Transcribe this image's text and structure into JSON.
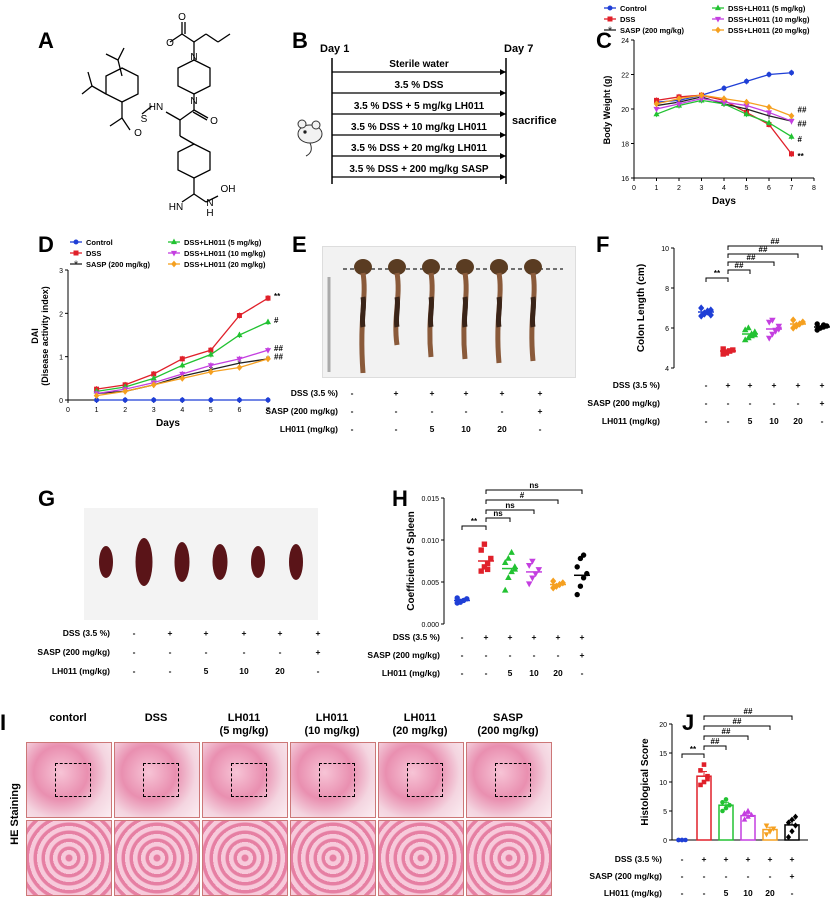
{
  "panels": {
    "A": "A",
    "B": "B",
    "C": "C",
    "D": "D",
    "E": "E",
    "F": "F",
    "G": "G",
    "H": "H",
    "I": "I",
    "J": "J"
  },
  "chem": {
    "atoms": [
      "O",
      "O",
      "N",
      "N",
      "O",
      "S",
      "O",
      "HN",
      "N",
      "OH",
      "HN",
      "H"
    ]
  },
  "schematic": {
    "day1": "Day 1",
    "day7": "Day 7",
    "sacrifice": "sacrifice",
    "groups": [
      "Sterile water",
      "3.5 % DSS",
      "3.5 % DSS + 5 mg/kg LH011",
      "3.5 % DSS + 10 mg/kg LH011",
      "3.5 % DSS + 20 mg/kg LH011",
      "3.5 % DSS + 200 mg/kg SASP"
    ]
  },
  "colors": {
    "Control": "#1f3fd6",
    "DSS": "#e0202a",
    "SASP": "#222222",
    "LH5": "#22c232",
    "LH10": "#c43fe0",
    "LH20": "#f5a020"
  },
  "treat": {
    "rows": [
      "DSS (3.5 %)",
      "SASP (200 mg/kg)",
      "LH011 (mg/kg)"
    ],
    "dss": [
      "-",
      "+",
      "+",
      "+",
      "+",
      "+"
    ],
    "sasp": [
      "-",
      "-",
      "-",
      "-",
      "-",
      "+"
    ],
    "lh": [
      "-",
      "-",
      "5",
      "10",
      "20",
      "-"
    ]
  },
  "treatFH": {
    "dss": [
      "-",
      "+",
      "+",
      "+",
      "+",
      "+"
    ],
    "sasp": [
      "-",
      "-",
      "-",
      "-",
      "-",
      "+"
    ],
    "lh": [
      "-",
      "-",
      "5",
      "10",
      "20",
      "-"
    ]
  },
  "chart_data": [
    {
      "panel": "C",
      "type": "line",
      "ylabel": "Body  Weight  (g)",
      "xlabel": "Days",
      "xlim": [
        0,
        8
      ],
      "ylim": [
        16,
        24
      ],
      "xticks": [
        "0",
        "1",
        "2",
        "3",
        "4",
        "5",
        "6",
        "7",
        "8"
      ],
      "yticks": [
        "16",
        "18",
        "20",
        "22",
        "24"
      ],
      "legend": [
        "Control",
        "DSS",
        "SASP (200 mg/kg)",
        "DSS+LH011 (5 mg/kg)",
        "DSS+LH011 (10 mg/kg)",
        "DSS+LH011 (20 mg/kg)"
      ],
      "x": [
        1,
        2,
        3,
        4,
        5,
        6,
        7
      ],
      "series": [
        {
          "name": "Control",
          "color": "#1f3fd6",
          "values": [
            20.4,
            20.5,
            20.8,
            21.2,
            21.6,
            22.0,
            22.1
          ]
        },
        {
          "name": "DSS",
          "color": "#e0202a",
          "values": [
            20.5,
            20.7,
            20.8,
            20.5,
            19.8,
            19.1,
            17.4
          ]
        },
        {
          "name": "SASP (200 mg/kg)",
          "color": "#222222",
          "values": [
            20.2,
            20.4,
            20.7,
            20.3,
            20.0,
            19.6,
            19.3
          ]
        },
        {
          "name": "DSS+LH011 (5 mg/kg)",
          "color": "#22c232",
          "values": [
            19.7,
            20.2,
            20.5,
            20.3,
            19.7,
            19.2,
            18.4
          ]
        },
        {
          "name": "DSS+LH011 (10 mg/kg)",
          "color": "#c43fe0",
          "values": [
            20.0,
            20.3,
            20.6,
            20.4,
            20.2,
            19.8,
            19.3
          ]
        },
        {
          "name": "DSS+LH011 (20 mg/kg)",
          "color": "#f5a020",
          "values": [
            20.3,
            20.6,
            20.8,
            20.6,
            20.4,
            20.1,
            19.6
          ]
        }
      ],
      "annotations": [
        "##",
        "##",
        "#",
        "**"
      ]
    },
    {
      "panel": "D",
      "type": "line",
      "ylabel": "DAI",
      "ylabel2": "(Disease activity index)",
      "xlabel": "Days",
      "xlim": [
        0,
        7
      ],
      "ylim": [
        0,
        3
      ],
      "xticks": [
        "0",
        "1",
        "2",
        "3",
        "4",
        "5",
        "6",
        "7"
      ],
      "yticks": [
        "0",
        "1",
        "2",
        "3"
      ],
      "legend": [
        "Control",
        "DSS",
        "SASP (200 mg/kg)",
        "DSS+LH011 (5 mg/kg)",
        "DSS+LH011 (10 mg/kg)",
        "DSS+LH011 (20 mg/kg)"
      ],
      "x": [
        1,
        2,
        3,
        4,
        5,
        6,
        7
      ],
      "series": [
        {
          "name": "Control",
          "color": "#1f3fd6",
          "values": [
            0,
            0,
            0,
            0,
            0,
            0,
            0
          ]
        },
        {
          "name": "DSS",
          "color": "#e0202a",
          "values": [
            0.25,
            0.35,
            0.6,
            0.95,
            1.15,
            1.95,
            2.35
          ]
        },
        {
          "name": "SASP (200 mg/kg)",
          "color": "#222222",
          "values": [
            0.15,
            0.2,
            0.35,
            0.55,
            0.7,
            0.85,
            0.95
          ]
        },
        {
          "name": "DSS+LH011 (5 mg/kg)",
          "color": "#22c232",
          "values": [
            0.2,
            0.3,
            0.5,
            0.8,
            1.05,
            1.5,
            1.8
          ]
        },
        {
          "name": "DSS+LH011 (10 mg/kg)",
          "color": "#c43fe0",
          "values": [
            0.15,
            0.25,
            0.4,
            0.6,
            0.8,
            0.95,
            1.15
          ]
        },
        {
          "name": "DSS+LH011 (20 mg/kg)",
          "color": "#f5a020",
          "values": [
            0.1,
            0.2,
            0.35,
            0.5,
            0.65,
            0.75,
            0.95
          ]
        }
      ],
      "annotations": [
        "**",
        "#",
        "##",
        "##"
      ]
    },
    {
      "panel": "F",
      "type": "scatter",
      "ylabel": "Colon Length (cm)",
      "ylim": [
        4,
        10
      ],
      "yticks": [
        "4",
        "6",
        "8",
        "10"
      ],
      "groups": [
        {
          "color": "#1f3fd6",
          "marker": "diamond",
          "mean": 6.8,
          "points": [
            6.6,
            6.7,
            6.8,
            6.9,
            7.0,
            6.75,
            6.85,
            6.65
          ]
        },
        {
          "color": "#e0202a",
          "marker": "square",
          "mean": 4.85,
          "points": [
            4.7,
            4.8,
            4.85,
            4.9,
            4.95,
            4.75,
            4.85
          ]
        },
        {
          "color": "#22c232",
          "marker": "triangle-up",
          "mean": 5.7,
          "points": [
            5.4,
            5.5,
            5.7,
            5.8,
            5.9,
            6.0,
            5.6,
            5.65
          ]
        },
        {
          "color": "#c43fe0",
          "marker": "triangle-down",
          "mean": 5.95,
          "points": [
            5.5,
            5.7,
            5.9,
            6.1,
            6.3,
            6.4,
            5.85,
            5.95
          ]
        },
        {
          "color": "#f5a020",
          "marker": "diamond",
          "mean": 6.2,
          "points": [
            6.0,
            6.1,
            6.2,
            6.3,
            6.4,
            6.15
          ]
        },
        {
          "color": "#000000",
          "marker": "circle",
          "mean": 6.05,
          "points": [
            5.9,
            6.0,
            6.05,
            6.1,
            6.2,
            6.0,
            6.15
          ]
        }
      ],
      "significance": [
        "**",
        "##",
        "##",
        "##",
        "##"
      ]
    },
    {
      "panel": "H",
      "type": "scatter",
      "ylabel": "Coefficient of Spleen",
      "ylim": [
        0,
        0.015
      ],
      "yticks": [
        "0.000",
        "0.005",
        "0.010",
        "0.015"
      ],
      "groups": [
        {
          "color": "#1f3fd6",
          "marker": "circle",
          "mean": 0.0028,
          "points": [
            0.0025,
            0.0027,
            0.0028,
            0.003,
            0.0031,
            0.0026
          ]
        },
        {
          "color": "#e0202a",
          "marker": "square",
          "mean": 0.0075,
          "points": [
            0.0063,
            0.0068,
            0.0072,
            0.0078,
            0.0088,
            0.0095,
            0.0065
          ]
        },
        {
          "color": "#22c232",
          "marker": "triangle-up",
          "mean": 0.0066,
          "points": [
            0.004,
            0.0055,
            0.0062,
            0.0068,
            0.0073,
            0.0078,
            0.0085,
            0.0065
          ]
        },
        {
          "color": "#c43fe0",
          "marker": "triangle-down",
          "mean": 0.0062,
          "points": [
            0.0048,
            0.0055,
            0.006,
            0.0065,
            0.007,
            0.0075
          ]
        },
        {
          "color": "#f5a020",
          "marker": "diamond",
          "mean": 0.0047,
          "points": [
            0.0043,
            0.0045,
            0.0047,
            0.0049,
            0.0051
          ]
        },
        {
          "color": "#000000",
          "marker": "circle",
          "mean": 0.0058,
          "points": [
            0.0035,
            0.0045,
            0.0055,
            0.006,
            0.0068,
            0.0078,
            0.0082
          ]
        }
      ],
      "significance": [
        "**",
        "ns",
        "ns",
        "#",
        "ns"
      ]
    },
    {
      "panel": "J",
      "type": "bar",
      "ylabel": "Histological Score",
      "ylim": [
        0,
        20
      ],
      "yticks": [
        "0",
        "5",
        "10",
        "15",
        "20"
      ],
      "groups": [
        {
          "color": "#1f3fd6",
          "value": 0,
          "err": 0,
          "points": [
            0,
            0,
            0,
            0,
            0
          ]
        },
        {
          "color": "#e0202a",
          "value": 11,
          "err": 0.8,
          "points": [
            9.5,
            10,
            11,
            12,
            13,
            10.5
          ]
        },
        {
          "color": "#22c232",
          "value": 6,
          "err": 0.5,
          "points": [
            5,
            5.5,
            6,
            6.5,
            7,
            6
          ]
        },
        {
          "color": "#c43fe0",
          "value": 4.2,
          "err": 0.4,
          "points": [
            3.5,
            4,
            4.3,
            4.6,
            5
          ]
        },
        {
          "color": "#f5a020",
          "value": 1.8,
          "err": 0.4,
          "points": [
            1,
            1.5,
            2,
            2.5,
            1.5
          ]
        },
        {
          "color": "#000000",
          "value": 2.6,
          "err": 0.8,
          "points": [
            0.5,
            1.5,
            2.5,
            3,
            3.5,
            4
          ]
        }
      ],
      "significance": [
        "**",
        "##",
        "##",
        "##",
        "##"
      ]
    }
  ],
  "histology": {
    "sidelabel": "HE Staining",
    "titles": [
      [
        "contorl",
        ""
      ],
      [
        "DSS",
        ""
      ],
      [
        "LH011",
        "(5 mg/kg)"
      ],
      [
        "LH011",
        "(10 mg/kg)"
      ],
      [
        "LH011",
        "(20 mg/kg)"
      ],
      [
        "SASP",
        "(200 mg/kg)"
      ]
    ]
  }
}
